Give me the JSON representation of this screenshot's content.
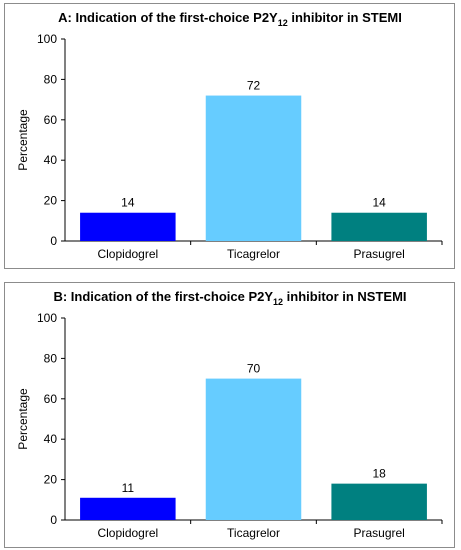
{
  "chart_data": [
    {
      "type": "bar",
      "title": {
        "prefix": "A: Indication of the first-choice P2Y",
        "sub": "12",
        "suffix": " inhibitor in STEMI"
      },
      "ylabel": "Percentage",
      "ylim": [
        0,
        100
      ],
      "yticks": [
        0,
        20,
        40,
        60,
        80,
        100
      ],
      "categories": [
        "Clopidogrel",
        "Ticagrelor",
        "Prasugrel"
      ],
      "values": [
        14,
        72,
        14
      ],
      "colors": [
        "#0000ff",
        "#66ccff",
        "#008080"
      ],
      "grid": false,
      "legend": "none"
    },
    {
      "type": "bar",
      "title": {
        "prefix": "B: Indication of the first-choice P2Y",
        "sub": "12",
        "suffix": " inhibitor in NSTEMI"
      },
      "ylabel": "Percentage",
      "ylim": [
        0,
        100
      ],
      "yticks": [
        0,
        20,
        40,
        60,
        80,
        100
      ],
      "categories": [
        "Clopidogrel",
        "Ticagrelor",
        "Prasugrel"
      ],
      "values": [
        11,
        70,
        18
      ],
      "colors": [
        "#0000ff",
        "#66ccff",
        "#008080"
      ],
      "grid": false,
      "legend": "none"
    }
  ]
}
